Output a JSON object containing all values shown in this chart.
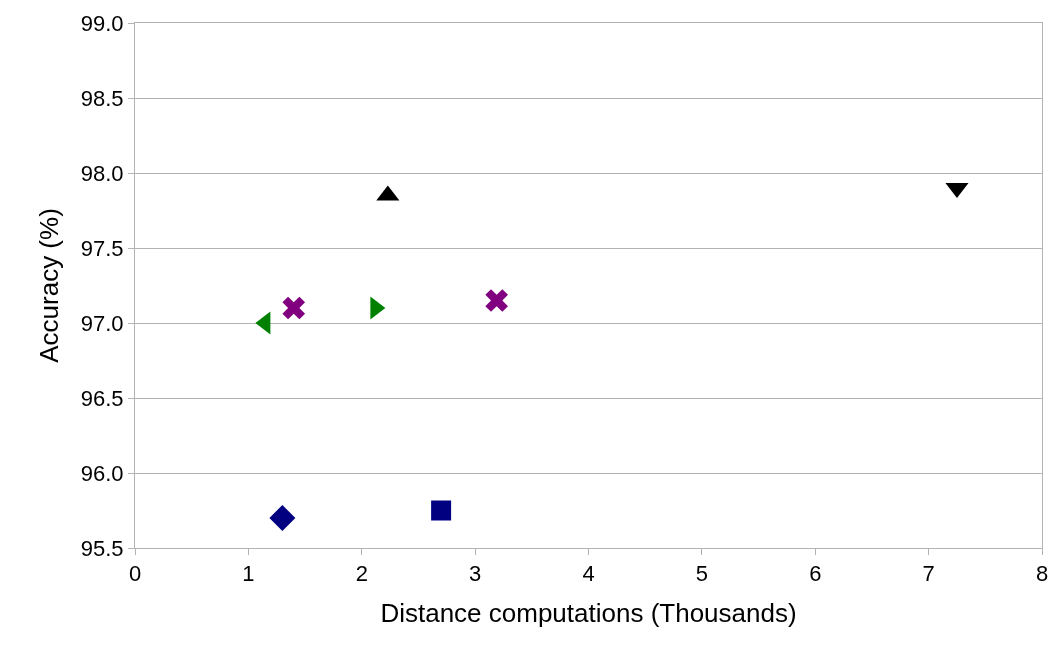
{
  "chart_data": {
    "type": "scatter",
    "xlabel": "Distance computations (Thousands)",
    "ylabel": "Accuracy (%)",
    "xlim": [
      0,
      8
    ],
    "xticks": [
      0,
      1,
      2,
      3,
      4,
      5,
      6,
      7,
      8
    ],
    "ylim": [
      95.5,
      99.0
    ],
    "yticks": [
      {
        "value": 95.5,
        "label": "95.5"
      },
      {
        "value": 96,
        "label": "96.0"
      },
      {
        "value": 96.5,
        "label": "96.5"
      },
      {
        "value": 97,
        "label": "97.0"
      },
      {
        "value": 97.5,
        "label": "97.5"
      },
      {
        "value": 98,
        "label": "98.0"
      },
      {
        "value": 98.5,
        "label": "98.5"
      },
      {
        "value": 99,
        "label": "99.0"
      }
    ],
    "grid": "y",
    "series": [
      {
        "color": "#000080",
        "marker": "diamond",
        "x": [
          1.3
        ],
        "values": [
          95.7
        ]
      },
      {
        "color": "#000080",
        "marker": "square",
        "x": [
          2.7
        ],
        "values": [
          95.75
        ]
      },
      {
        "color": "#008000",
        "marker": "triangle-left",
        "x": [
          1.15
        ],
        "values": [
          97.0
        ]
      },
      {
        "color": "#800080",
        "marker": "cross",
        "x": [
          1.4
        ],
        "values": [
          97.1
        ]
      },
      {
        "color": "#008000",
        "marker": "triangle-right",
        "x": [
          2.12
        ],
        "values": [
          97.1
        ]
      },
      {
        "color": "#800080",
        "marker": "cross",
        "x": [
          3.19
        ],
        "values": [
          97.15
        ]
      },
      {
        "color": "#000000",
        "marker": "triangle-up",
        "x": [
          2.23
        ],
        "values": [
          97.85
        ]
      },
      {
        "color": "#000000",
        "marker": "triangle-down",
        "x": [
          7.25
        ],
        "values": [
          97.9
        ]
      }
    ]
  }
}
